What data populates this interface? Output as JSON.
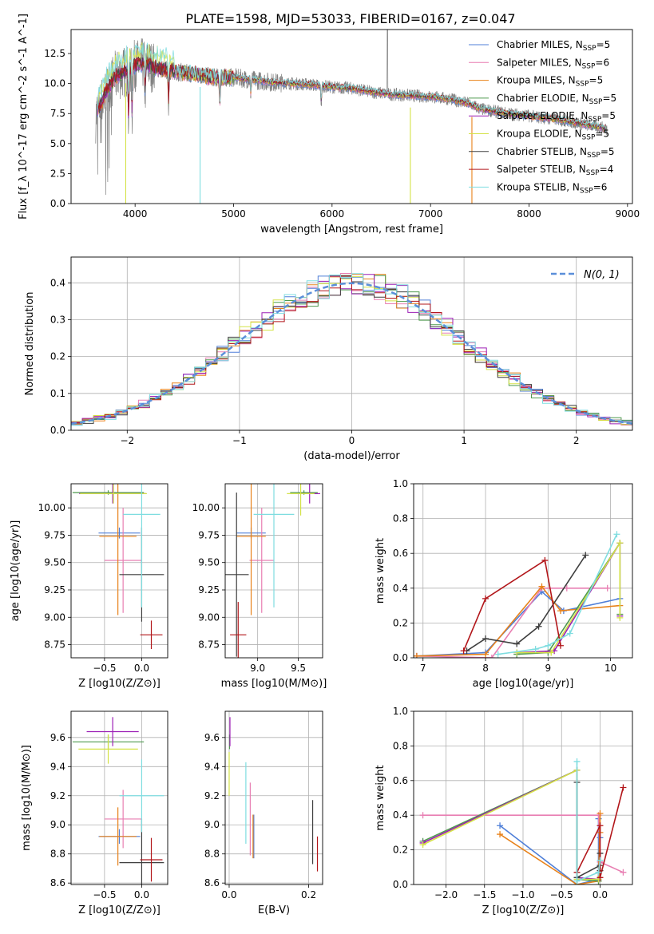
{
  "figure": {
    "title": "PLATE=1598, MJD=53033, FIBERID=0167, z=0.047"
  },
  "series": [
    {
      "name": "Chabrier MILES",
      "nssp": "5",
      "color": "#4f7fd8"
    },
    {
      "name": "Salpeter MILES",
      "nssp": "6",
      "color": "#e87eb2"
    },
    {
      "name": "Kroupa MILES",
      "nssp": "5",
      "color": "#e8821a"
    },
    {
      "name": "Chabrier ELODIE",
      "nssp": "5",
      "color": "#4f9a4f"
    },
    {
      "name": "Salpeter ELODIE",
      "nssp": "5",
      "color": "#9c1fb5"
    },
    {
      "name": "Kroupa ELODIE",
      "nssp": "5",
      "color": "#d4e246"
    },
    {
      "name": "Chabrier STELIB",
      "nssp": "5",
      "color": "#3f3f3f"
    },
    {
      "name": "Salpeter STELIB",
      "nssp": "4",
      "color": "#b2161a"
    },
    {
      "name": "Kroupa STELIB",
      "nssp": "6",
      "color": "#7fdde0"
    }
  ],
  "chart_data": [
    {
      "id": "spectrum",
      "type": "line",
      "title": "PLATE=1598, MJD=53033, FIBERID=0167, z=0.047",
      "xlabel": "wavelength [Angstrom, rest frame]",
      "ylabel": "Flux [f_λ 10^-17 erg cm^-2 s^-1 A^-1]",
      "xlim": [
        3350,
        9050
      ],
      "ylim": [
        0,
        14.5
      ],
      "xticks": [
        4000,
        5000,
        6000,
        7000,
        8000,
        9000
      ],
      "yticks": [
        0.0,
        2.5,
        5.0,
        7.5,
        10.0,
        12.5
      ],
      "legend": "top-right",
      "data_color": "#808080",
      "continuum": {
        "x": [
          3600,
          3700,
          3800,
          3900,
          4000,
          4100,
          4200,
          4400,
          4600,
          4800,
          5000,
          5200,
          5400,
          5600,
          5800,
          6000,
          6200,
          6400,
          6600,
          6800,
          7000,
          7200,
          7400,
          7500,
          7700,
          7900,
          8100,
          8300,
          8500,
          8700,
          8800
        ],
        "y": [
          7.2,
          9.2,
          10.6,
          11.0,
          11.5,
          11.7,
          11.3,
          11.0,
          10.8,
          10.5,
          10.5,
          10.3,
          10.1,
          10.0,
          9.9,
          9.7,
          9.6,
          9.3,
          9.1,
          9.0,
          8.9,
          8.7,
          8.3,
          7.9,
          7.6,
          7.4,
          7.2,
          7.0,
          6.7,
          6.4,
          6.2
        ]
      },
      "absorption_lines": [
        {
          "x": 3934,
          "depth": 4.5
        },
        {
          "x": 3969,
          "depth": 4.0
        },
        {
          "x": 4102,
          "depth": 2.5
        },
        {
          "x": 4340,
          "depth": 3.0
        },
        {
          "x": 4861,
          "depth": 2.0
        },
        {
          "x": 5175,
          "depth": 1.2
        },
        {
          "x": 5890,
          "depth": 1.5
        }
      ],
      "artifacts": [
        {
          "x": 3905,
          "ymin": 0,
          "series": 5
        },
        {
          "x": 4660,
          "ymin": 0,
          "series": 8
        },
        {
          "x": 6795,
          "ymin": 0,
          "series": 5
        },
        {
          "x": 7420,
          "ymin": 0,
          "series": 2
        }
      ],
      "emission": {
        "x": 6563,
        "peak": 14.5
      }
    },
    {
      "id": "residuals",
      "type": "line",
      "xlabel": "(data-model)/error",
      "ylabel": "Normed distribution",
      "xlim": [
        -2.5,
        2.5
      ],
      "ylim": [
        0,
        0.47
      ],
      "xticks": [
        -2,
        -1,
        0,
        1,
        2
      ],
      "yticks": [
        0.0,
        0.1,
        0.2,
        0.3,
        0.4
      ],
      "legend_label": "N(0, 1)",
      "legend_color": "#5b8fd9",
      "bin_width": 0.1
    },
    {
      "id": "Z_age",
      "type": "scatter",
      "xlabel": "Z [log10(Z/Z⊙)]",
      "ylabel": "age [log10(age/yr)]",
      "xlim": [
        -0.95,
        0.35
      ],
      "ylim": [
        8.63,
        10.22
      ],
      "xticks": [
        -0.5,
        0.0
      ],
      "yticks": [
        8.75,
        9.0,
        9.25,
        9.5,
        9.75,
        10.0
      ],
      "points": [
        {
          "s": 0,
          "x": -0.3,
          "y": 9.77,
          "xe": 0.28,
          "ye": 0.05
        },
        {
          "s": 1,
          "x": -0.25,
          "y": 9.52,
          "xe": 0.25,
          "ye": 0.48
        },
        {
          "s": 2,
          "x": -0.32,
          "y": 9.74,
          "xe": 0.25,
          "ye": 0.72
        },
        {
          "s": 3,
          "x": -0.45,
          "y": 10.14,
          "xe": 0.48,
          "ye": 0.02
        },
        {
          "s": 4,
          "x": -0.39,
          "y": 10.13,
          "xe": 0.45,
          "ye": 0.09
        },
        {
          "s": 5,
          "x": -0.38,
          "y": 10.13,
          "xe": 0.45,
          "ye": 0.09
        },
        {
          "s": 6,
          "x": 0.0,
          "y": 9.39,
          "xe": 0.3,
          "ye": 0.43
        },
        {
          "s": 7,
          "x": 0.13,
          "y": 8.84,
          "xe": 0.15,
          "ye": 0.13
        },
        {
          "s": 8,
          "x": 0.0,
          "y": 9.94,
          "xe": 0.25,
          "ye": 0.85
        }
      ]
    },
    {
      "id": "mass_age",
      "type": "scatter",
      "xlabel": "mass [log10(M/M⊙)]",
      "ylabel": "",
      "xlim": [
        8.6,
        9.8
      ],
      "ylim": [
        8.63,
        10.22
      ],
      "xticks": [
        9.0,
        9.5
      ],
      "yticks": [
        8.75,
        9.0,
        9.25,
        9.5,
        9.75,
        10.0
      ],
      "points": [
        {
          "s": 0,
          "x": 8.92,
          "y": 9.77,
          "xe": 0.18,
          "ye": 0.05
        },
        {
          "s": 1,
          "x": 9.05,
          "y": 9.52,
          "xe": 0.15,
          "ye": 0.48
        },
        {
          "s": 2,
          "x": 8.92,
          "y": 9.74,
          "xe": 0.18,
          "ye": 0.72
        },
        {
          "s": 3,
          "x": 9.57,
          "y": 10.14,
          "xe": 0.17,
          "ye": 0.02
        },
        {
          "s": 4,
          "x": 9.64,
          "y": 10.13,
          "xe": 0.13,
          "ye": 0.09
        },
        {
          "s": 5,
          "x": 9.53,
          "y": 10.13,
          "xe": 0.17,
          "ye": 0.2
        },
        {
          "s": 6,
          "x": 8.74,
          "y": 9.39,
          "xe": 0.15,
          "ye": 0.75
        },
        {
          "s": 7,
          "x": 8.76,
          "y": 8.84,
          "xe": 0.1,
          "ye": 0.3
        },
        {
          "s": 8,
          "x": 9.2,
          "y": 9.94,
          "xe": 0.25,
          "ye": 0.85
        }
      ]
    },
    {
      "id": "age_weight",
      "type": "line",
      "xlabel": "age [log10(age/yr)]",
      "ylabel": "mass weight",
      "xlim": [
        6.85,
        10.35
      ],
      "ylim": [
        0,
        1.0
      ],
      "xticks": [
        7,
        8,
        9,
        10
      ],
      "yticks": [
        0.0,
        0.2,
        0.4,
        0.6,
        0.8,
        1.0
      ],
      "series": [
        {
          "s": 0,
          "x": [
            6.9,
            8.0,
            8.9,
            9.25,
            10.15
          ],
          "y": [
            0.01,
            0.03,
            0.38,
            0.27,
            0.34
          ]
        },
        {
          "s": 1,
          "x": [
            6.9,
            8.1,
            8.9,
            9.3,
            9.95
          ],
          "y": [
            0.01,
            0.0,
            0.4,
            0.4,
            0.4
          ]
        },
        {
          "s": 2,
          "x": [
            6.9,
            8.0,
            8.9,
            9.2,
            10.15
          ],
          "y": [
            0.01,
            0.02,
            0.41,
            0.27,
            0.3
          ]
        },
        {
          "s": 3,
          "x": [
            8.5,
            9.0,
            10.15,
            10.15
          ],
          "y": [
            0.02,
            0.03,
            0.66,
            0.25
          ]
        },
        {
          "s": 4,
          "x": [
            8.5,
            9.1,
            10.15,
            10.15
          ],
          "y": [
            0.03,
            0.04,
            0.66,
            0.24
          ]
        },
        {
          "s": 5,
          "x": [
            8.5,
            9.05,
            10.15,
            10.15
          ],
          "y": [
            0.03,
            0.03,
            0.66,
            0.23
          ]
        },
        {
          "s": 6,
          "x": [
            7.7,
            8.0,
            8.5,
            8.85,
            9.6
          ],
          "y": [
            0.04,
            0.11,
            0.08,
            0.18,
            0.59
          ]
        },
        {
          "s": 7,
          "x": [
            7.65,
            8.0,
            8.95,
            9.2
          ],
          "y": [
            0.04,
            0.34,
            0.56,
            0.07
          ]
        },
        {
          "s": 8,
          "x": [
            8.2,
            8.8,
            9.0,
            9.35,
            10.1
          ],
          "y": [
            0.02,
            0.05,
            0.07,
            0.14,
            0.71
          ]
        }
      ]
    },
    {
      "id": "Z_mass",
      "type": "scatter",
      "xlabel": "Z [log10(Z/Z⊙)]",
      "ylabel": "mass [log10(M/M⊙)]",
      "xlim": [
        -0.95,
        0.35
      ],
      "ylim": [
        8.59,
        9.78
      ],
      "xticks": [
        -0.5,
        0.0
      ],
      "yticks": [
        8.6,
        8.8,
        9.0,
        9.2,
        9.4,
        9.6
      ],
      "points": [
        {
          "s": 0,
          "x": -0.3,
          "y": 8.92,
          "xe": 0.28,
          "ye": 0.05
        },
        {
          "s": 1,
          "x": -0.25,
          "y": 9.04,
          "xe": 0.25,
          "ye": 0.2
        },
        {
          "s": 2,
          "x": -0.32,
          "y": 8.92,
          "xe": 0.25,
          "ye": 0.2
        },
        {
          "s": 3,
          "x": -0.45,
          "y": 9.57,
          "xe": 0.48,
          "ye": 0.05
        },
        {
          "s": 4,
          "x": -0.39,
          "y": 9.64,
          "xe": 0.35,
          "ye": 0.1
        },
        {
          "s": 5,
          "x": -0.45,
          "y": 9.52,
          "xe": 0.4,
          "ye": 0.1
        },
        {
          "s": 6,
          "x": 0.0,
          "y": 8.74,
          "xe": 0.3,
          "ye": 0.3
        },
        {
          "s": 7,
          "x": 0.13,
          "y": 8.76,
          "xe": 0.15,
          "ye": 0.15
        },
        {
          "s": 8,
          "x": 0.0,
          "y": 9.2,
          "xe": 0.3,
          "ye": 0.25
        }
      ]
    },
    {
      "id": "ebv_mass",
      "type": "scatter",
      "xlabel": "E(B-V)",
      "ylabel": "",
      "xlim": [
        -0.01,
        0.235
      ],
      "ylim": [
        8.59,
        9.78
      ],
      "xticks": [
        0.0,
        0.2
      ],
      "yticks": [
        8.6,
        8.8,
        9.0,
        9.2,
        9.4,
        9.6
      ],
      "points": [
        {
          "s": 0,
          "x": 0.062,
          "y": 8.92,
          "ye": 0.15
        },
        {
          "s": 1,
          "x": 0.053,
          "y": 9.04,
          "ye": 0.25
        },
        {
          "s": 2,
          "x": 0.06,
          "y": 8.92,
          "ye": 0.15
        },
        {
          "s": 3,
          "x": 0.001,
          "y": 9.57,
          "ye": 0.05
        },
        {
          "s": 4,
          "x": 0.002,
          "y": 9.64,
          "ye": 0.1
        },
        {
          "s": 5,
          "x": 0.0,
          "y": 9.35,
          "ye": 0.15
        },
        {
          "s": 6,
          "x": 0.21,
          "y": 8.95,
          "ye": 0.22
        },
        {
          "s": 7,
          "x": 0.222,
          "y": 8.8,
          "ye": 0.12
        },
        {
          "s": 8,
          "x": 0.042,
          "y": 9.15,
          "ye": 0.28
        }
      ]
    },
    {
      "id": "Z_weight",
      "type": "line",
      "xlabel": "Z [log10(Z/Z⊙)]",
      "ylabel": "mass weight",
      "xlim": [
        -2.42,
        0.42
      ],
      "ylim": [
        0,
        1.0
      ],
      "xticks": [
        -2.0,
        -1.5,
        -1.0,
        -0.5,
        0.0
      ],
      "yticks": [
        0.0,
        0.2,
        0.4,
        0.6,
        0.8,
        1.0
      ],
      "series": [
        {
          "s": 0,
          "x": [
            -1.3,
            -0.3,
            -0.02,
            -0.02,
            0.0
          ],
          "y": [
            0.34,
            0.0,
            0.03,
            0.38,
            0.27
          ]
        },
        {
          "s": 1,
          "x": [
            -2.3,
            -0.02,
            0.0,
            0.3
          ],
          "y": [
            0.4,
            0.4,
            0.13,
            0.07
          ]
        },
        {
          "s": 2,
          "x": [
            -1.3,
            -0.3,
            -0.02,
            0.0,
            0.0
          ],
          "y": [
            0.29,
            0.0,
            0.02,
            0.41,
            0.3
          ]
        },
        {
          "s": 3,
          "x": [
            -2.3,
            -0.3,
            -0.3,
            -0.02
          ],
          "y": [
            0.25,
            0.66,
            0.03,
            0.02
          ]
        },
        {
          "s": 4,
          "x": [
            -2.3,
            -0.3,
            -0.3,
            -0.02
          ],
          "y": [
            0.24,
            0.66,
            0.04,
            0.03
          ]
        },
        {
          "s": 5,
          "x": [
            -2.3,
            -0.3,
            -0.3,
            -0.02
          ],
          "y": [
            0.23,
            0.66,
            0.03,
            0.03
          ]
        },
        {
          "s": 6,
          "x": [
            -0.3,
            -0.3,
            0.0,
            0.0,
            0.0
          ],
          "y": [
            0.59,
            0.04,
            0.11,
            0.08,
            0.18
          ]
        },
        {
          "s": 7,
          "x": [
            -0.3,
            0.0,
            0.0,
            0.3
          ],
          "y": [
            0.07,
            0.34,
            0.04,
            0.56
          ]
        },
        {
          "s": 8,
          "x": [
            -0.3,
            -0.3,
            -0.02,
            0.0
          ],
          "y": [
            0.71,
            0.02,
            0.07,
            0.14
          ]
        }
      ]
    }
  ]
}
